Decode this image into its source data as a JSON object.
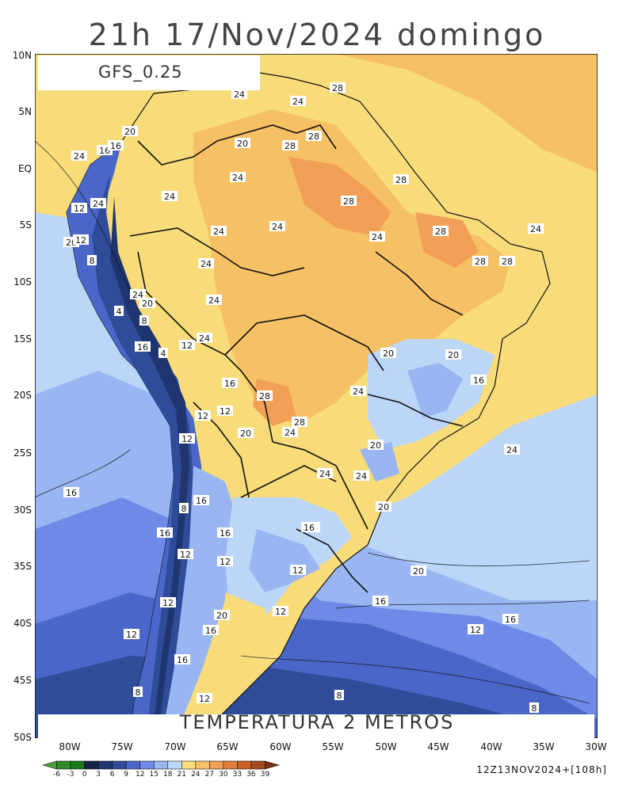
{
  "title": "21h 17/Nov/2024 domingo",
  "model": "GFS_0.25",
  "product": "TEMPERATURA 2 METROS",
  "valid_label": "12Z13NOV2024+[108h]",
  "lat_ticks": [
    "10N",
    "5N",
    "EQ",
    "5S",
    "10S",
    "15S",
    "20S",
    "25S",
    "30S",
    "35S",
    "40S",
    "45S",
    "50S"
  ],
  "lon_ticks": [
    "80W",
    "75W",
    "70W",
    "65W",
    "60W",
    "55W",
    "50W",
    "45W",
    "40W",
    "35W",
    "30W"
  ],
  "colorbar": {
    "labels": [
      "-6",
      "-3",
      "0",
      "3",
      "6",
      "9",
      "12",
      "15",
      "18",
      "21",
      "24",
      "27",
      "30",
      "33",
      "36",
      "39"
    ],
    "colors": [
      "#4aa03c",
      "#2d8a2a",
      "#1a7a1a",
      "#15224a",
      "#1f3570",
      "#2f4c98",
      "#4a66c8",
      "#6f8ae6",
      "#9ab6f2",
      "#bcd6f8",
      "#f8dc7a",
      "#f6c064",
      "#f2a058",
      "#e07e3c",
      "#c9612a",
      "#a64a1e",
      "#7a3412"
    ]
  },
  "contour_labels": [
    {
      "text": "28"
    },
    {
      "text": "24"
    },
    {
      "text": "24"
    },
    {
      "text": "20"
    },
    {
      "text": "28"
    },
    {
      "text": "28"
    },
    {
      "text": "20"
    },
    {
      "text": "16"
    },
    {
      "text": "16"
    },
    {
      "text": "24"
    },
    {
      "text": "24"
    },
    {
      "text": "24"
    },
    {
      "text": "28"
    },
    {
      "text": "28"
    },
    {
      "text": "12"
    },
    {
      "text": "24"
    },
    {
      "text": "24"
    },
    {
      "text": "24"
    },
    {
      "text": "24"
    },
    {
      "text": "28"
    },
    {
      "text": "28"
    },
    {
      "text": "28"
    },
    {
      "text": "24"
    },
    {
      "text": "20"
    },
    {
      "text": "12"
    },
    {
      "text": "8"
    },
    {
      "text": "24"
    },
    {
      "text": "24"
    },
    {
      "text": "20"
    },
    {
      "text": "4"
    },
    {
      "text": "8"
    },
    {
      "text": "24"
    },
    {
      "text": "24"
    },
    {
      "text": "20"
    },
    {
      "text": "20"
    },
    {
      "text": "16"
    },
    {
      "text": "4"
    },
    {
      "text": "12"
    },
    {
      "text": "16"
    },
    {
      "text": "20"
    },
    {
      "text": "16"
    },
    {
      "text": "24"
    },
    {
      "text": "28"
    },
    {
      "text": "28"
    },
    {
      "text": "12"
    },
    {
      "text": "12"
    },
    {
      "text": "24"
    },
    {
      "text": "20"
    },
    {
      "text": "12"
    },
    {
      "text": "20"
    },
    {
      "text": "24"
    },
    {
      "text": "24"
    },
    {
      "text": "24"
    },
    {
      "text": "16"
    },
    {
      "text": "16"
    },
    {
      "text": "8"
    },
    {
      "text": "20"
    },
    {
      "text": "16"
    },
    {
      "text": "16"
    },
    {
      "text": "16"
    },
    {
      "text": "12"
    },
    {
      "text": "12"
    },
    {
      "text": "20"
    },
    {
      "text": "12"
    },
    {
      "text": "12"
    },
    {
      "text": "16"
    },
    {
      "text": "16"
    },
    {
      "text": "20"
    },
    {
      "text": "12"
    },
    {
      "text": "16"
    },
    {
      "text": "12"
    },
    {
      "text": "16"
    },
    {
      "text": "12"
    },
    {
      "text": "8"
    },
    {
      "text": "8"
    },
    {
      "text": "8"
    },
    {
      "text": "16"
    },
    {
      "text": "12"
    }
  ]
}
